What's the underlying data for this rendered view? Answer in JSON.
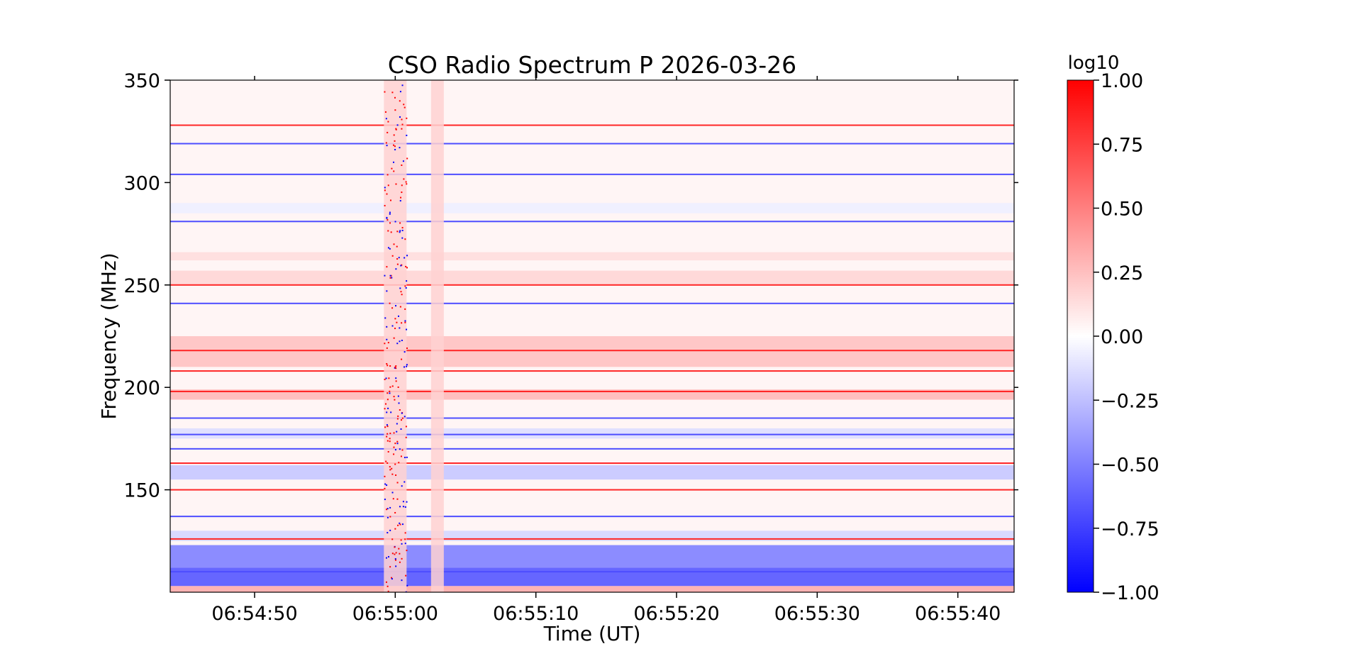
{
  "chart_data": {
    "type": "heatmap",
    "title": "CSO Radio Spectrum P 2026-03-26",
    "xlabel": "Time (UT)",
    "ylabel": "Frequency (MHz)",
    "colorbar_label": "log10",
    "x_range": [
      "06:54:44",
      "06:55:44"
    ],
    "ylim": [
      100,
      350
    ],
    "clim": [
      -1.0,
      1.0
    ],
    "colormap": "bwr",
    "x_ticks": [
      "06:54:50",
      "06:55:00",
      "06:55:10",
      "06:55:20",
      "06:55:30",
      "06:55:40"
    ],
    "y_ticks": [
      150,
      200,
      250,
      300,
      350
    ],
    "colorbar_ticks": [
      "1.00",
      "0.75",
      "0.50",
      "0.25",
      "0.00",
      "−0.25",
      "−0.50",
      "−0.75",
      "−1.00"
    ],
    "features": {
      "red_horizontal_lines_mhz": [
        328,
        250,
        218,
        208,
        198,
        163,
        150,
        126
      ],
      "blue_horizontal_lines_mhz": [
        319,
        304,
        281,
        241,
        185,
        177,
        170,
        137,
        110
      ],
      "broadband_columns_time": [
        "06:55:00",
        "06:55:03"
      ],
      "low_frequency_blue_band_mhz": [
        100,
        125
      ]
    }
  }
}
